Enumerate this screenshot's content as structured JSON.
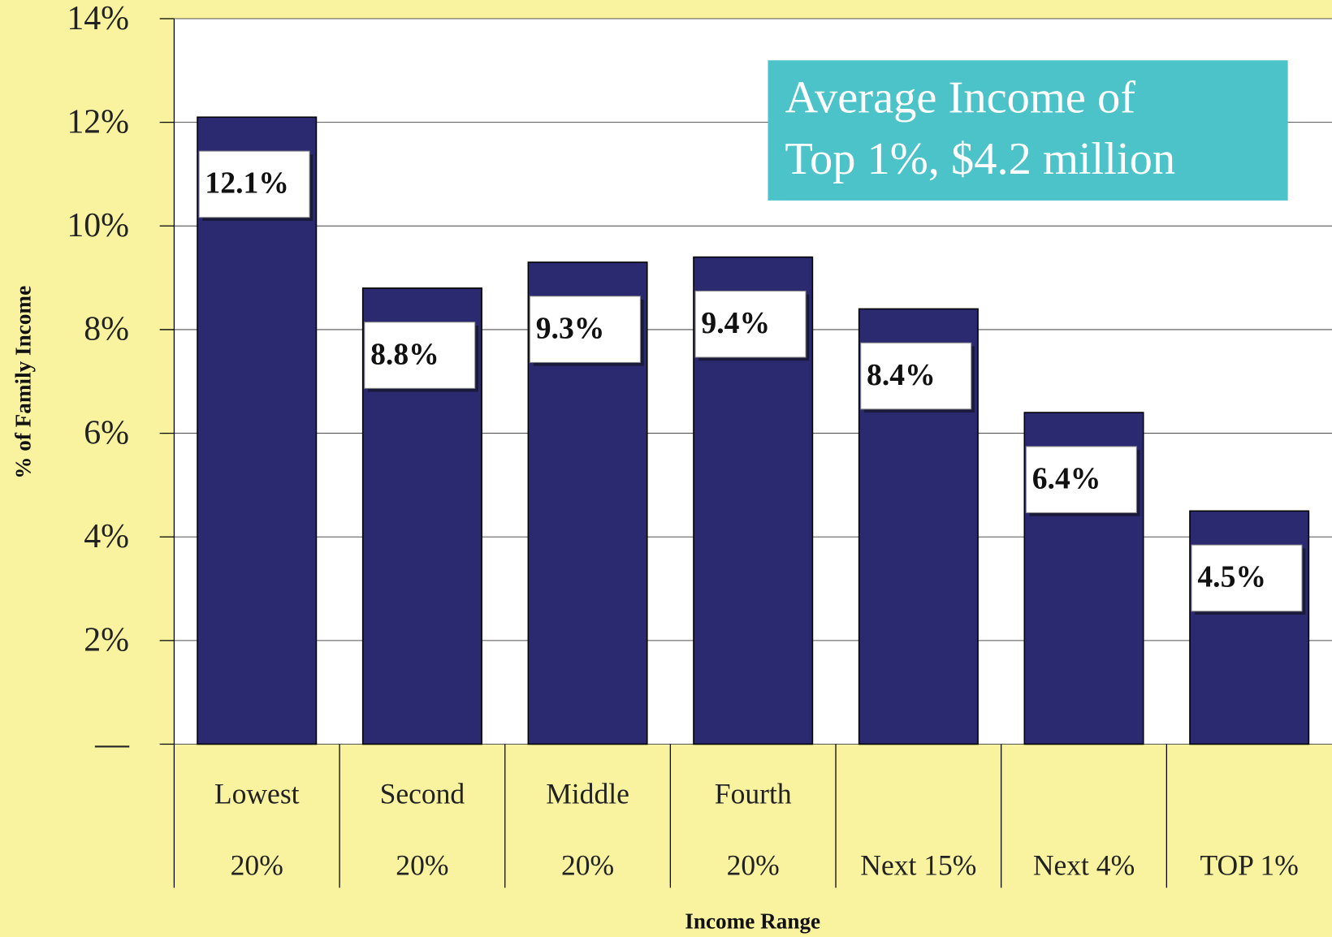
{
  "chart_data": {
    "type": "bar",
    "categories": [
      [
        "Lowest",
        "20%"
      ],
      [
        "Second",
        "20%"
      ],
      [
        "Middle",
        "20%"
      ],
      [
        "Fourth",
        "20%"
      ],
      [
        "Next 15%"
      ],
      [
        "Next 4%"
      ],
      [
        "TOP 1%"
      ]
    ],
    "values": [
      12.1,
      8.8,
      9.3,
      9.4,
      8.4,
      6.4,
      4.5
    ],
    "value_labels": [
      "12.1%",
      "8.8%",
      "9.3%",
      "9.4%",
      "8.4%",
      "6.4%",
      "4.5%"
    ],
    "color": "#2b2a70",
    "ylim": [
      0,
      14
    ],
    "yticks": [
      {
        "value": 0,
        "label": "—"
      },
      {
        "value": 2,
        "label": "2%"
      },
      {
        "value": 4,
        "label": "4%"
      },
      {
        "value": 6,
        "label": "6%"
      },
      {
        "value": 8,
        "label": "8%"
      },
      {
        "value": 10,
        "label": "10%"
      },
      {
        "value": 12,
        "label": "12%"
      },
      {
        "value": 14,
        "label": "14%"
      }
    ],
    "grid": true,
    "ylabel": "% of Family Income",
    "xlabel": "Income Range",
    "annotation": [
      "Average Income of",
      "Top 1%, $4.2 million"
    ]
  }
}
